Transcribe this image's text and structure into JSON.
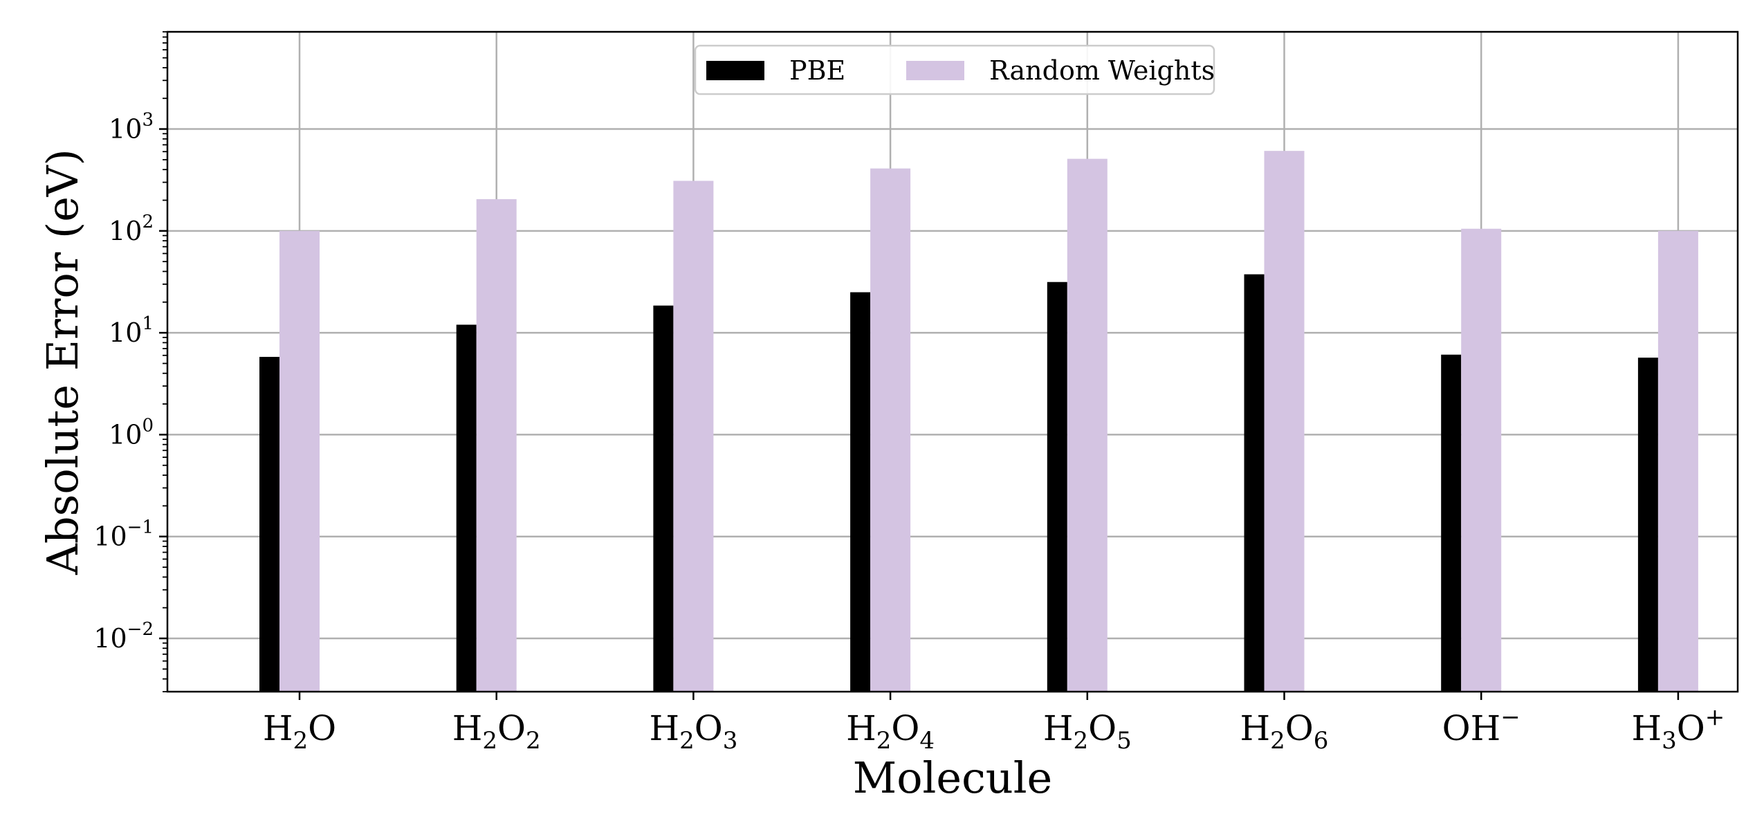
{
  "chart_data": {
    "type": "bar",
    "xlabel": "Molecule",
    "ylabel": "Absolute Error (eV)",
    "yscale": "log",
    "ylim": [
      0.003,
      9000
    ],
    "grid": true,
    "legend_position": "top-center",
    "categories": [
      {
        "base": "H",
        "sub": "2",
        "base2": "O",
        "sub2": "",
        "sup": ""
      },
      {
        "base": "H",
        "sub": "2",
        "base2": "O",
        "sub2": "2",
        "sup": ""
      },
      {
        "base": "H",
        "sub": "2",
        "base2": "O",
        "sub2": "3",
        "sup": ""
      },
      {
        "base": "H",
        "sub": "2",
        "base2": "O",
        "sub2": "4",
        "sup": ""
      },
      {
        "base": "H",
        "sub": "2",
        "base2": "O",
        "sub2": "5",
        "sup": ""
      },
      {
        "base": "H",
        "sub": "2",
        "base2": "O",
        "sub2": "6",
        "sup": ""
      },
      {
        "base": "OH",
        "sub": "",
        "base2": "",
        "sub2": "",
        "sup": "−"
      },
      {
        "base": "H",
        "sub": "3",
        "base2": "O",
        "sub2": "",
        "sup": "+"
      }
    ],
    "y_ticks": [
      {
        "value": 0.01,
        "base": "10",
        "exp": "−2"
      },
      {
        "value": 0.1,
        "base": "10",
        "exp": "−1"
      },
      {
        "value": 1,
        "base": "10",
        "exp": "0"
      },
      {
        "value": 10,
        "base": "10",
        "exp": "1"
      },
      {
        "value": 100,
        "base": "10",
        "exp": "2"
      },
      {
        "value": 1000,
        "base": "10",
        "exp": "3"
      }
    ],
    "series": [
      {
        "name": "PBE",
        "color": "#000000",
        "values": [
          5.8,
          12,
          18.5,
          25,
          31.5,
          37.5,
          6.1,
          5.7
        ]
      },
      {
        "name": "Random Weights",
        "color": "#d4c4e2",
        "values": [
          100,
          205,
          310,
          410,
          510,
          610,
          105,
          100
        ]
      }
    ]
  }
}
